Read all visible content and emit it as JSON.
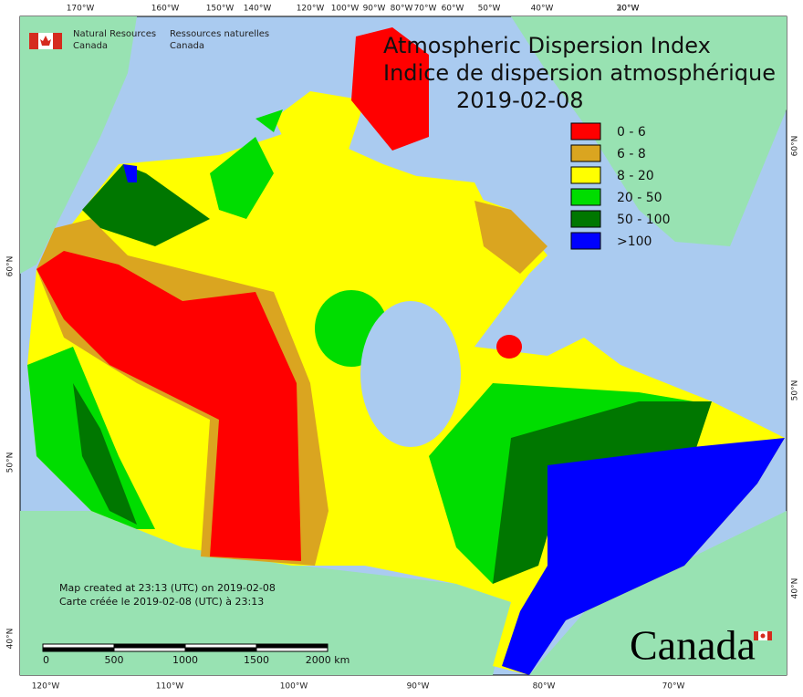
{
  "header": {
    "department_en": [
      "Natural Resources",
      "Canada"
    ],
    "department_fr": [
      "Ressources naturelles",
      "Canada"
    ]
  },
  "title": [
    "Atmospheric Dispersion Index",
    "Indice de dispersion atmosphérique",
    "2019-02-08"
  ],
  "legend": [
    {
      "label": "0 - 6",
      "color": "#ff0000"
    },
    {
      "label": "6 - 8",
      "color": "#daa520"
    },
    {
      "label": "8 - 20",
      "color": "#ffff00"
    },
    {
      "label": "20 - 50",
      "color": "#00dd00"
    },
    {
      "label": "50 - 100",
      "color": "#007700"
    },
    {
      "label": ">100",
      "color": "#0000ff"
    }
  ],
  "graticule": {
    "top": [
      "170°W",
      "160°W",
      "150°W",
      "140°W",
      "120°W",
      "100°W",
      "90°W",
      "80°W",
      "70°W",
      "60°W",
      "50°W",
      "40°W",
      "30°W",
      "20°W"
    ],
    "bottom": [
      "120°W",
      "110°W",
      "100°W",
      "90°W",
      "80°W",
      "70°W"
    ],
    "left": [
      "60°N",
      "50°N",
      "40°N"
    ],
    "right": [
      "60°N",
      "50°N",
      "40°N"
    ]
  },
  "footer": {
    "created_en": "Map created at 23:13 (UTC) on 2019-02-08",
    "created_fr": "Carte créée le 2019-02-08 (UTC) à 23:13",
    "scale": [
      "0",
      "500",
      "1000",
      "1500",
      "2000 km"
    ],
    "wordmark": "Canada"
  }
}
